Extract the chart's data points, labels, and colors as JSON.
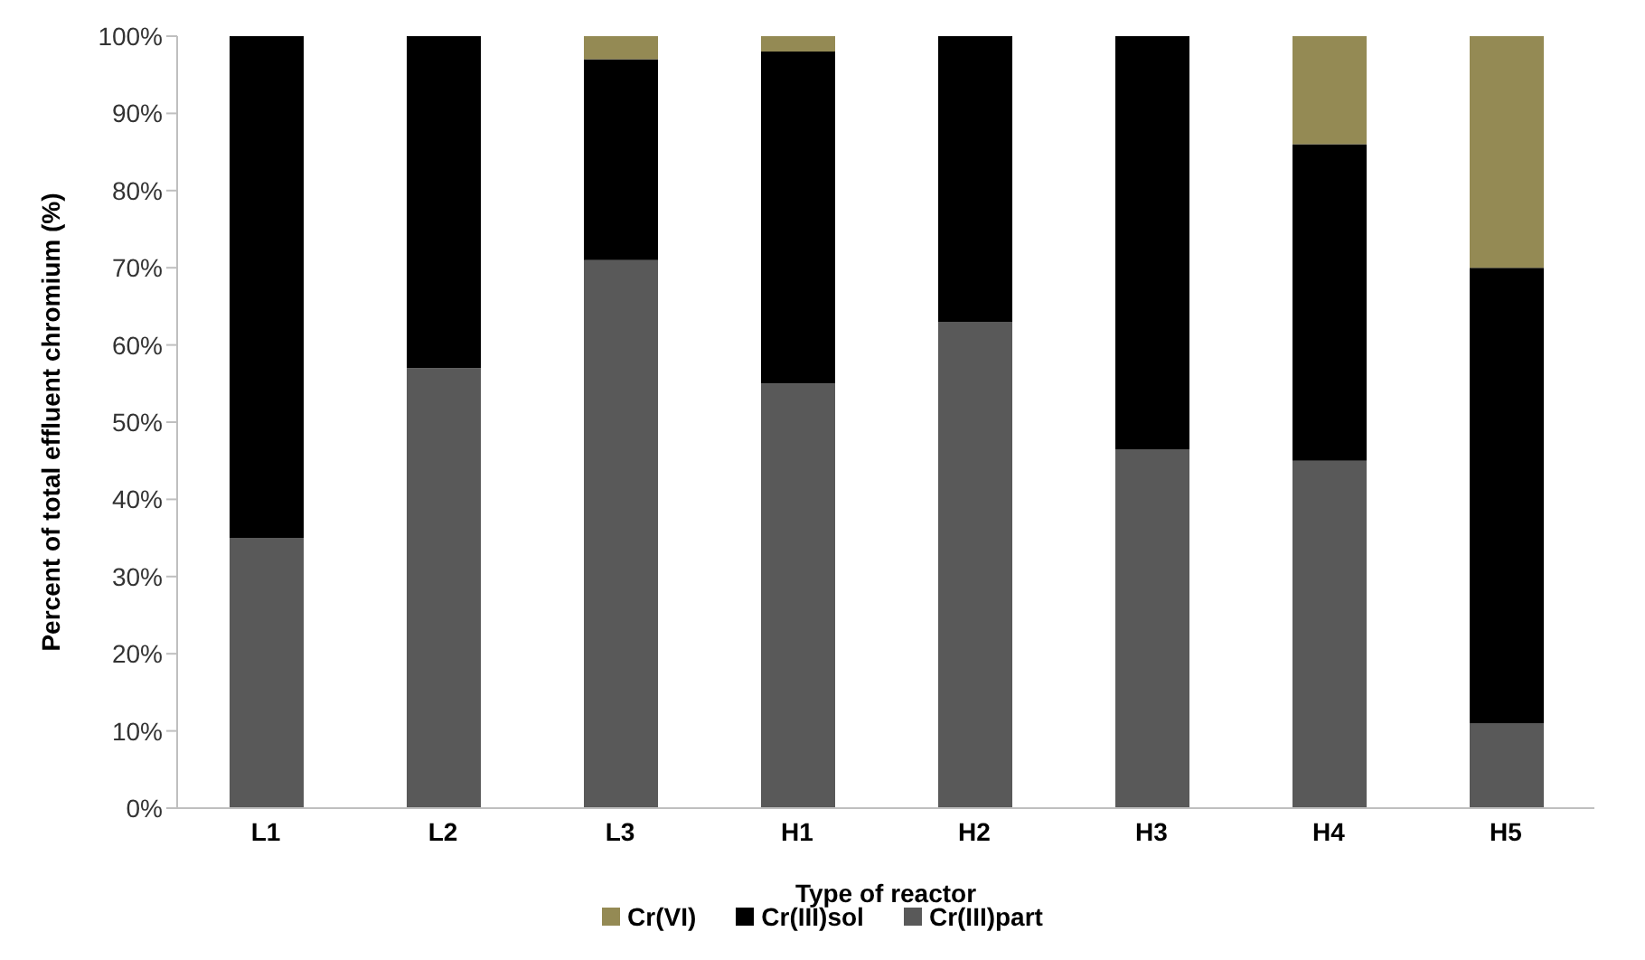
{
  "chart_data": {
    "type": "bar",
    "stacked": true,
    "xlabel": "Type of reactor",
    "ylabel": "Percent of total effluent chromium (%)",
    "categories": [
      "L1",
      "L2",
      "L3",
      "H1",
      "H2",
      "H3",
      "H4",
      "H5"
    ],
    "series": [
      {
        "name": "Cr(III)part",
        "color": "#595959",
        "values": [
          35,
          57,
          71,
          55,
          63,
          46.5,
          45,
          11
        ]
      },
      {
        "name": "Cr(III)sol",
        "color": "#000000",
        "values": [
          65,
          43,
          26,
          43,
          37,
          53.5,
          41,
          59
        ]
      },
      {
        "name": "Cr(VI)",
        "color": "#948a54",
        "values": [
          0,
          0,
          3,
          2,
          0,
          0,
          14,
          30
        ]
      }
    ],
    "ylim": [
      0,
      100
    ],
    "yticks": [
      {
        "value": 0,
        "label": "0%"
      },
      {
        "value": 10,
        "label": "10%"
      },
      {
        "value": 20,
        "label": "20%"
      },
      {
        "value": 30,
        "label": "30%"
      },
      {
        "value": 40,
        "label": "40%"
      },
      {
        "value": 50,
        "label": "50%"
      },
      {
        "value": 60,
        "label": "60%"
      },
      {
        "value": 70,
        "label": "70%"
      },
      {
        "value": 80,
        "label": "80%"
      },
      {
        "value": 90,
        "label": "90%"
      },
      {
        "value": 100,
        "label": "100%"
      }
    ],
    "grid": false,
    "legend": "bottom"
  }
}
